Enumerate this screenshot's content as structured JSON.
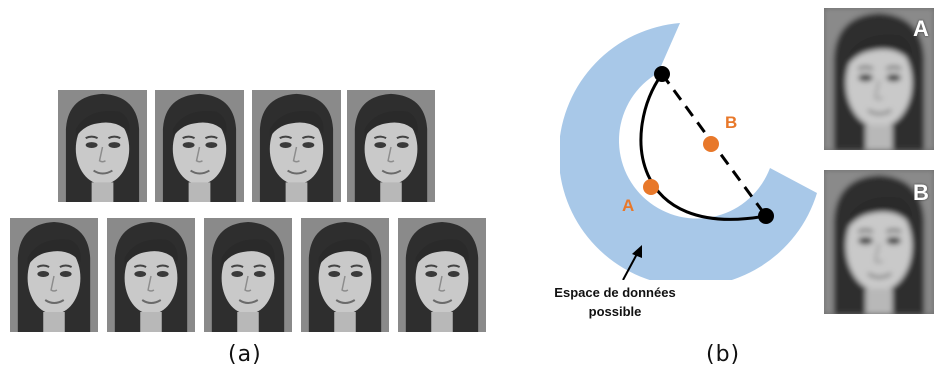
{
  "panel_a": {
    "caption": "(a)",
    "top_row_count": 4,
    "bottom_row_count": 5
  },
  "panel_b": {
    "caption": "(b)",
    "point_a_label": "A",
    "point_b_label": "B",
    "space_label_line1": "Espace de données",
    "space_label_line2": "possible",
    "recon_a_label": "A",
    "recon_b_label": "B",
    "colors": {
      "manifold": "#a8c8e8",
      "point": "#e8782a",
      "path": "#000000"
    }
  }
}
